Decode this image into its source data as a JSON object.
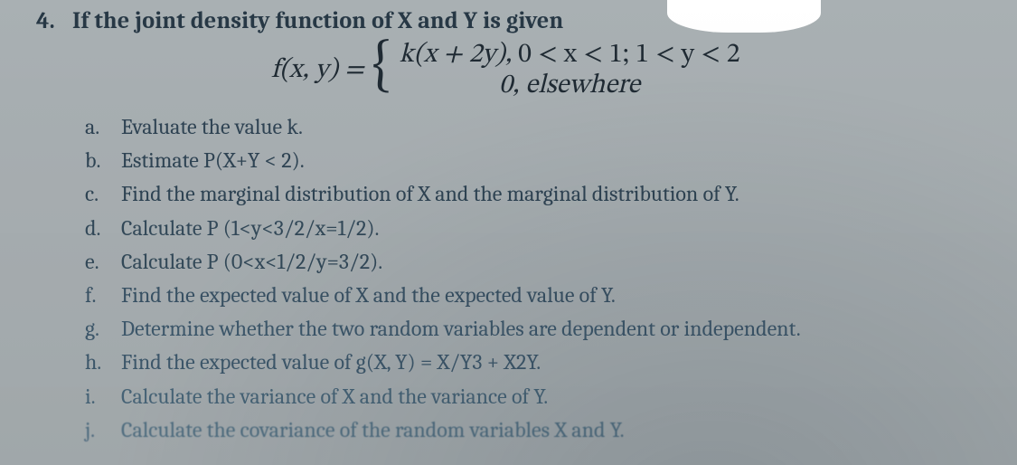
{
  "colors": {
    "background": "#a9b0b3",
    "text_primary": "#2a3a4a",
    "text_heading": "#273845",
    "whiteout": "#ffffff"
  },
  "typography": {
    "body_family": "Cambria, Georgia, 'Times New Roman', serif",
    "math_family": "'Cambria Math', 'STIX Two Math', 'Times New Roman', serif",
    "heading_size_pt": 20,
    "body_size_pt": 18,
    "formula_size_pt": 22,
    "heading_weight": 700
  },
  "question": {
    "number": "4.",
    "prompt": "If the joint density function of X and Y is given"
  },
  "formula": {
    "lhs": "f(x, y) =",
    "case1_left": "k(x + 2y),",
    "case1_right": "0 < x < 1; 1 < y < 2",
    "case2": "0, elsewhere"
  },
  "items": [
    {
      "label": "a.",
      "text": "Evaluate the value k."
    },
    {
      "label": "b.",
      "text": "Estimate P(X+Y < 2)."
    },
    {
      "label": "c.",
      "text": "Find the marginal distribution of X and the marginal distribution of Y."
    },
    {
      "label": "d.",
      "text": "Calculate P (1<y<3/2/x=1/2)."
    },
    {
      "label": "e.",
      "text": "Calculate P (0<x<1/2/y=3/2)."
    },
    {
      "label": "f.",
      "text": "Find the expected value of X and the expected value of Y."
    },
    {
      "label": "g.",
      "text": "Determine whether the two random variables are dependent or independent."
    },
    {
      "label": "h.",
      "text": "Find the expected value of g(X, Y) = X/Y3 + X2Y."
    },
    {
      "label": "i.",
      "text": "Calculate the variance of X and the variance of Y."
    },
    {
      "label": "j.",
      "text": "Calculate the covariance of the random variables X and Y."
    }
  ]
}
